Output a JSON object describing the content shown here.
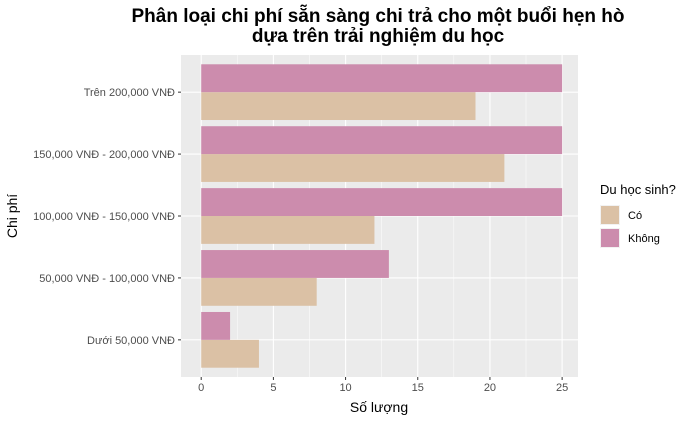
{
  "chart_data": {
    "type": "bar",
    "orientation": "horizontal",
    "title": "Phân loại chi phí sẵn sàng chi trả cho một buổi hẹn hò dựa trên trải nghiệm du học",
    "title_lines": [
      "Phân loại chi phí sẵn sàng chi trả cho một buổi hẹn hò",
      "dựa trên trải nghiệm du học"
    ],
    "xlabel": "Số lượng",
    "ylabel": "Chi phí",
    "xlim": [
      -1.4,
      26.1
    ],
    "x_ticks": [
      0,
      5,
      10,
      15,
      20,
      25
    ],
    "categories": [
      "Dưới 50,000 VNĐ",
      "50,000 VNĐ - 100,000 VNĐ",
      "100,000 VNĐ - 150,000 VNĐ",
      "150,000 VNĐ - 200,000 VNĐ",
      "Trên 200,000 VNĐ"
    ],
    "series": [
      {
        "name": "Có",
        "color": "#dbc1a5",
        "values": [
          4,
          8,
          12,
          21,
          19
        ]
      },
      {
        "name": "Không",
        "color": "#cc8cad",
        "values": [
          2,
          13,
          25,
          25,
          25
        ]
      }
    ],
    "legend": {
      "title": "Du học sinh?",
      "position": "right"
    },
    "grid": true,
    "panel_background": "#ebebeb",
    "grid_color": "#ffffff"
  }
}
